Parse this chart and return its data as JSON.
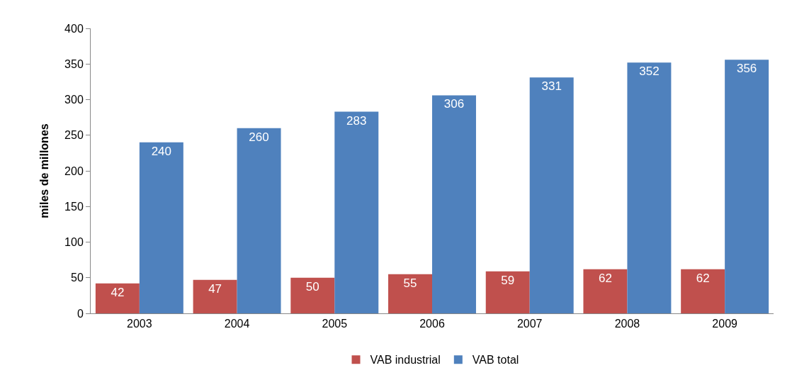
{
  "chart_data": {
    "type": "bar",
    "ylabel": "miles de millones",
    "categories": [
      "2003",
      "2004",
      "2005",
      "2006",
      "2007",
      "2008",
      "2009"
    ],
    "series": [
      {
        "name": "VAB industrial",
        "color": "#c0504d",
        "values": [
          42,
          47,
          50,
          55,
          59,
          62,
          62
        ]
      },
      {
        "name": "VAB total",
        "color": "#4f81bd",
        "values": [
          240,
          260,
          283,
          306,
          331,
          352,
          356
        ]
      }
    ],
    "ylim": [
      0,
      400
    ],
    "yticks": [
      0,
      50,
      100,
      150,
      200,
      250,
      300,
      350,
      400
    ],
    "grid": false,
    "legend": "bottom",
    "data_labels": true
  }
}
